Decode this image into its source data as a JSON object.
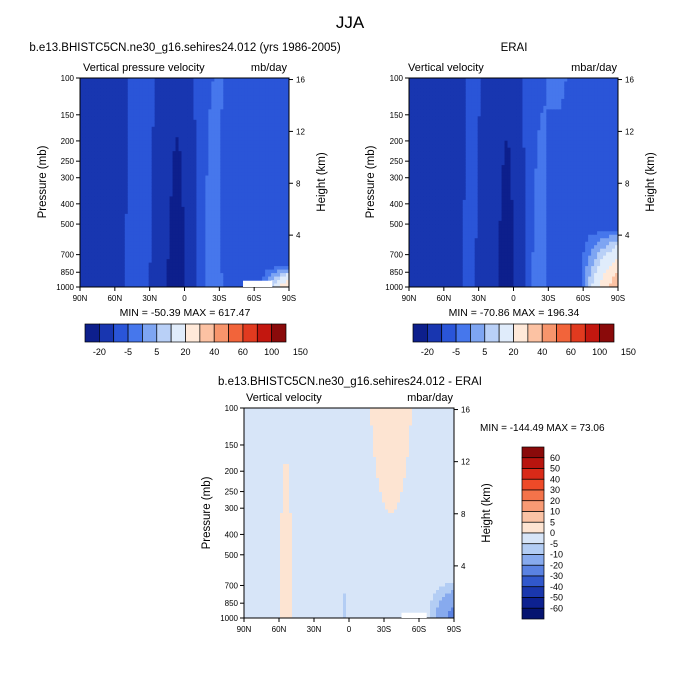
{
  "figure": {
    "title": "JJA",
    "colors": {
      "frame": "#000000",
      "zero_white": "#ffffff"
    }
  },
  "chart_data": [
    {
      "type": "heatmap",
      "id": "model",
      "title": "b.e13.BHISTC5CN.ne30_g16.sehires24.012 (yrs 1986-2005)",
      "left_string": "Vertical pressure velocity",
      "right_string": "mb/day",
      "ylabel": "Pressure (mb)",
      "ylabel_right": "Height (km)",
      "stats": "MIN = -50.39   MAX = 617.47",
      "xlim": [
        90,
        -90
      ],
      "x_ticks": [
        "90N",
        "60N",
        "30N",
        "0",
        "30S",
        "60S",
        "90S"
      ],
      "y_scale": "log",
      "ylim": [
        1000,
        100
      ],
      "y_ticks": [
        100,
        150,
        200,
        250,
        300,
        400,
        500,
        700,
        850,
        1000
      ],
      "height_ticks": [
        4,
        8,
        12,
        16
      ],
      "levels": [
        -20,
        -5,
        5,
        20,
        40,
        60,
        100,
        150
      ],
      "colorbar": {
        "labels": [
          "-20",
          "-5",
          "5",
          "20",
          "40",
          "60",
          "100",
          "150"
        ],
        "colors": [
          "#0d1f8c",
          "#1836b0",
          "#2a55d8",
          "#4677ec",
          "#7ea5f2",
          "#b9d0f7",
          "#e0ecfb",
          "#ffe9d9",
          "#fcc2a3",
          "#f7956c",
          "#f2643a",
          "#e13a1f",
          "#c3170f",
          "#8a0a0a"
        ]
      }
    },
    {
      "type": "heatmap",
      "id": "obs",
      "title": "ERAI",
      "left_string": "Vertical velocity",
      "right_string": "mbar/day",
      "ylabel": "Pressure (mb)",
      "ylabel_right": "Height (km)",
      "stats": "MIN = -70.86   MAX = 196.34",
      "xlim": [
        90,
        -90
      ],
      "x_ticks": [
        "90N",
        "60N",
        "30N",
        "0",
        "30S",
        "60S",
        "90S"
      ],
      "y_scale": "log",
      "ylim": [
        1000,
        100
      ],
      "y_ticks": [
        100,
        150,
        200,
        250,
        300,
        400,
        500,
        700,
        850,
        1000
      ],
      "height_ticks": [
        4,
        8,
        12,
        16
      ],
      "levels": [
        -20,
        -5,
        5,
        20,
        40,
        60,
        100,
        150
      ],
      "colorbar": {
        "labels": [
          "-20",
          "-5",
          "5",
          "20",
          "40",
          "60",
          "100",
          "150"
        ],
        "colors": [
          "#0d1f8c",
          "#1836b0",
          "#2a55d8",
          "#4677ec",
          "#7ea5f2",
          "#b9d0f7",
          "#e0ecfb",
          "#ffe9d9",
          "#fcc2a3",
          "#f7956c",
          "#f2643a",
          "#e13a1f",
          "#c3170f",
          "#8a0a0a"
        ]
      }
    },
    {
      "type": "heatmap",
      "id": "diff",
      "title": "b.e13.BHISTC5CN.ne30_g16.sehires24.012 - ERAI",
      "left_string": "Vertical velocity",
      "right_string": "mbar/day",
      "ylabel": "Pressure (mb)",
      "ylabel_right": "Height (km)",
      "stats": "MIN = -144.49   MAX =  73.06",
      "xlim": [
        90,
        -90
      ],
      "x_ticks": [
        "90N",
        "60N",
        "30N",
        "0",
        "30S",
        "60S",
        "90S"
      ],
      "y_scale": "log",
      "ylim": [
        1000,
        100
      ],
      "y_ticks": [
        100,
        150,
        200,
        250,
        300,
        400,
        500,
        700,
        850,
        1000
      ],
      "height_ticks": [
        4,
        8,
        12,
        16
      ],
      "levels": [
        -60,
        -50,
        -40,
        -30,
        -20,
        -10,
        -5,
        0,
        5,
        10,
        20,
        30,
        40,
        50,
        60
      ],
      "colorbar": {
        "labels": [
          "60",
          "50",
          "40",
          "30",
          "20",
          "10",
          "5",
          "0",
          "-5",
          "-10",
          "-20",
          "-30",
          "-40",
          "-50",
          "-60"
        ],
        "colors": [
          "#8a0a0a",
          "#b8140e",
          "#d92a18",
          "#ee4a28",
          "#f4734a",
          "#f89a74",
          "#fbc3a5",
          "#fde4d2",
          "#d7e5f8",
          "#b3cdf4",
          "#87aaee",
          "#5a82e2",
          "#3158cc",
          "#1a37ad",
          "#0d2190",
          "#061470"
        ]
      }
    }
  ]
}
